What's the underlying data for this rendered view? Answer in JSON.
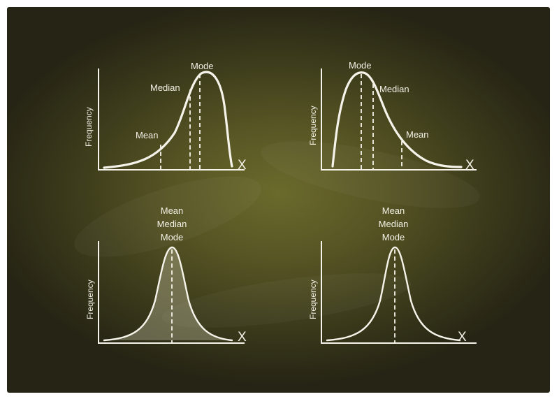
{
  "panels": [
    {
      "id": "left-skewed",
      "y_axis_label": "Frequency",
      "x_axis_label": "X",
      "markers": [
        {
          "key": "mean",
          "label": "Mean"
        },
        {
          "key": "median",
          "label": "Median"
        },
        {
          "key": "mode",
          "label": "Mode"
        }
      ],
      "filled": false
    },
    {
      "id": "right-skewed",
      "y_axis_label": "Frequency",
      "x_axis_label": "X",
      "markers": [
        {
          "key": "mode",
          "label": "Mode"
        },
        {
          "key": "median",
          "label": "Median"
        },
        {
          "key": "mean",
          "label": "Mean"
        }
      ],
      "filled": false
    },
    {
      "id": "symmetric-filled",
      "y_axis_label": "Frequency",
      "x_axis_label": "X",
      "stacked_labels": [
        "Mean",
        "Median",
        "Mode"
      ],
      "filled": true
    },
    {
      "id": "symmetric-outline",
      "y_axis_label": "Frequency",
      "x_axis_label": "X",
      "stacked_labels": [
        "Mean",
        "Median",
        "Mode"
      ],
      "filled": false
    }
  ],
  "colors": {
    "board": "#575524",
    "chalk": "#f6f4ea",
    "fill": "#b8b496"
  }
}
